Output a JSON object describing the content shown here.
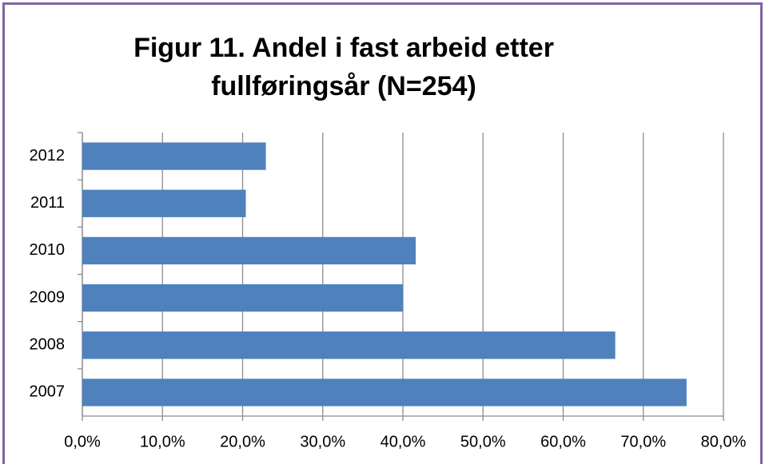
{
  "chart_data": {
    "type": "barh",
    "title": [
      "Figur 11. Andel i fast arbeid etter",
      "fullføringsår (N=254)"
    ],
    "categories": [
      "2012",
      "2011",
      "2010",
      "2009",
      "2008",
      "2007"
    ],
    "values": [
      22.9,
      20.4,
      41.6,
      40.0,
      66.5,
      75.4
    ],
    "color": "#4f81bd",
    "xlim": [
      0,
      80
    ],
    "xticks": [
      {
        "value": 0,
        "label": "0,0%"
      },
      {
        "value": 10,
        "label": "10,0%"
      },
      {
        "value": 20,
        "label": "20,0%"
      },
      {
        "value": 30,
        "label": "30,0%"
      },
      {
        "value": 40,
        "label": "40,0%"
      },
      {
        "value": 50,
        "label": "50,0%"
      },
      {
        "value": 60,
        "label": "60,0%"
      },
      {
        "value": 70,
        "label": "70,0%"
      },
      {
        "value": 80,
        "label": "80,0%"
      }
    ],
    "grid": true
  }
}
